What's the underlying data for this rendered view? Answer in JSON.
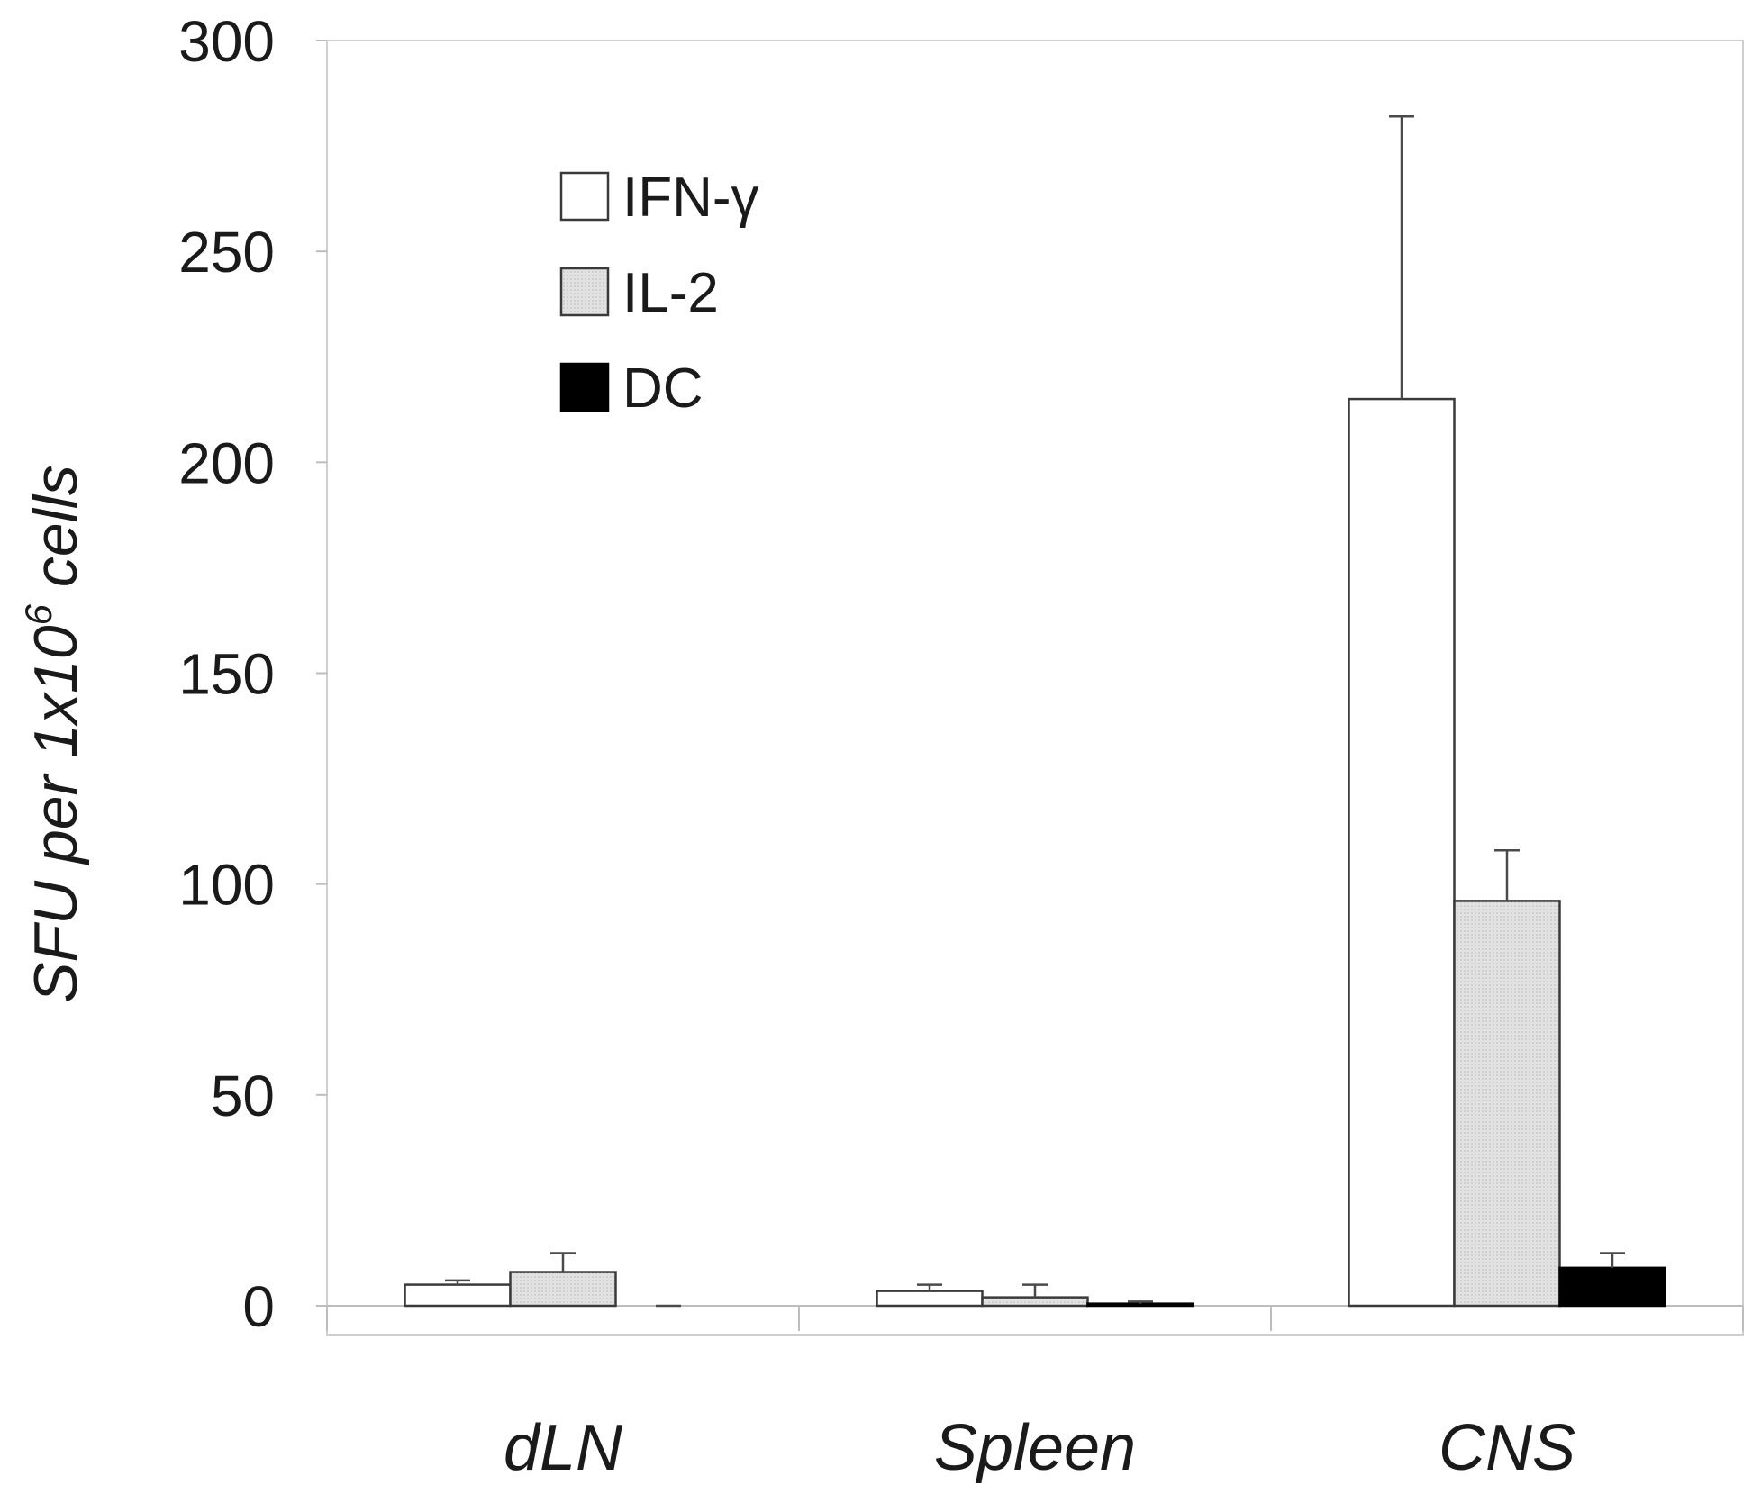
{
  "chart_data": {
    "type": "bar",
    "categories": [
      "dLN",
      "Spleen",
      "CNS"
    ],
    "series": [
      {
        "name": "IFN-γ",
        "values": [
          5,
          3.5,
          215
        ],
        "errors": [
          1,
          1.5,
          67
        ],
        "color": "#ffffff"
      },
      {
        "name": "IL-2",
        "values": [
          8,
          2,
          96
        ],
        "errors": [
          4.5,
          3,
          12
        ],
        "color": "#dcdcdc"
      },
      {
        "name": "DC",
        "values": [
          0,
          0.5,
          9
        ],
        "errors": [
          0,
          0.5,
          3.5
        ],
        "color": "#000000"
      }
    ],
    "ylabel": {
      "pre": "SFU per 1x10",
      "sup": "6",
      "post": " cells"
    },
    "ylim": [
      0,
      300
    ],
    "yticks": [
      0,
      50,
      100,
      150,
      200,
      250,
      300
    ],
    "grid": false,
    "legend_position": "top-left"
  }
}
